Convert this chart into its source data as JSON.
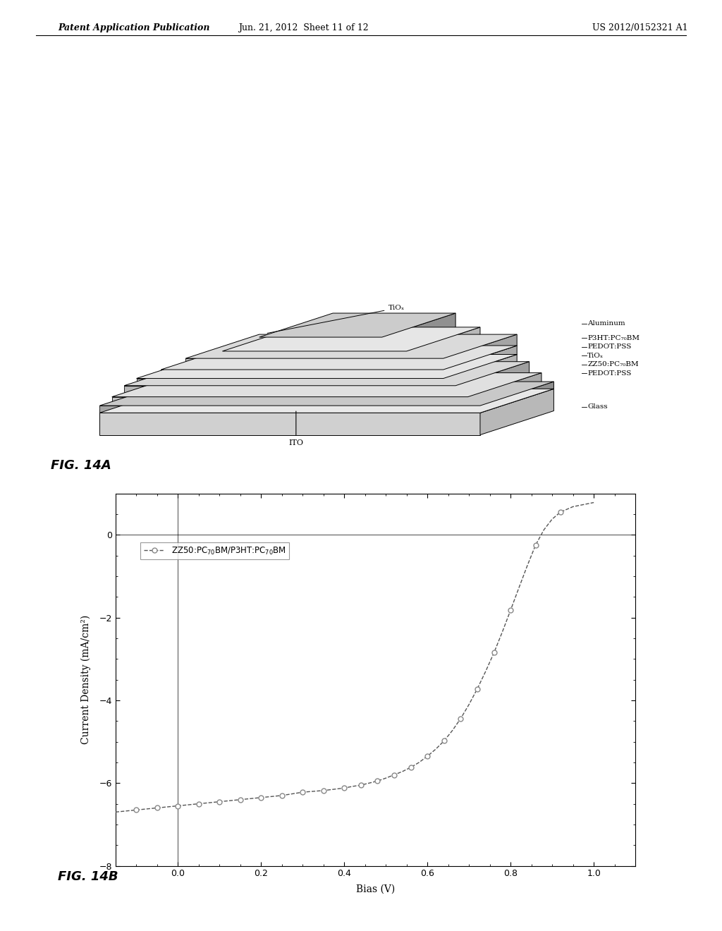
{
  "header_left": "Patent Application Publication",
  "header_center": "Jun. 21, 2012  Sheet 11 of 12",
  "header_right": "US 2012/0152321 A1",
  "fig14a_label": "FIG. 14A",
  "fig14b_label": "FIG. 14B",
  "layer_labels": [
    "TiOₓ",
    "Aluminum",
    "P3HT:PC₇₀BM",
    "PEDOT:PSS",
    "TiOₓ",
    "ZZ50:PC₇₀BM",
    "PEDOT:PSS",
    "Glass",
    "ITO"
  ],
  "xlabel": "Bias (V)",
  "ylabel": "Current Density (mA/cm²)",
  "legend_label": "ZZ50:PC₇₀BM/P3HT:PC₇₀BM",
  "xlim": [
    -0.15,
    1.1
  ],
  "ylim": [
    -8,
    1.0
  ],
  "xticks": [
    0.0,
    0.2,
    0.4,
    0.6,
    0.8,
    1.0
  ],
  "yticks": [
    0,
    -2,
    -4,
    -6,
    -8
  ],
  "curve_x": [
    -0.15,
    -0.1,
    -0.05,
    0.0,
    0.05,
    0.1,
    0.15,
    0.2,
    0.25,
    0.3,
    0.35,
    0.4,
    0.42,
    0.44,
    0.46,
    0.48,
    0.5,
    0.52,
    0.54,
    0.56,
    0.58,
    0.6,
    0.62,
    0.64,
    0.66,
    0.68,
    0.7,
    0.72,
    0.74,
    0.76,
    0.78,
    0.8,
    0.82,
    0.84,
    0.86,
    0.88,
    0.9,
    0.92,
    0.95,
    1.0
  ],
  "curve_y": [
    -6.7,
    -6.65,
    -6.6,
    -6.55,
    -6.5,
    -6.45,
    -6.4,
    -6.35,
    -6.3,
    -6.22,
    -6.18,
    -6.12,
    -6.08,
    -6.05,
    -6.0,
    -5.95,
    -5.88,
    -5.8,
    -5.72,
    -5.62,
    -5.5,
    -5.35,
    -5.18,
    -4.98,
    -4.73,
    -4.44,
    -4.1,
    -3.72,
    -3.3,
    -2.85,
    -2.35,
    -1.82,
    -1.28,
    -0.75,
    -0.25,
    0.12,
    0.38,
    0.55,
    0.68,
    0.78
  ],
  "marker_x": [
    -0.1,
    -0.05,
    0.0,
    0.05,
    0.1,
    0.15,
    0.2,
    0.25,
    0.3,
    0.35,
    0.4,
    0.44,
    0.48,
    0.52,
    0.56,
    0.6,
    0.64,
    0.68,
    0.72,
    0.76,
    0.8,
    0.86,
    0.92
  ],
  "marker_y": [
    -6.65,
    -6.6,
    -6.55,
    -6.5,
    -6.45,
    -6.4,
    -6.35,
    -6.3,
    -6.22,
    -6.18,
    -6.12,
    -6.05,
    -5.95,
    -5.8,
    -5.62,
    -5.35,
    -4.98,
    -4.44,
    -3.72,
    -2.85,
    -1.82,
    -0.25,
    0.55
  ],
  "bg_color": "#ffffff",
  "line_color": "#555555",
  "marker_color": "#888888",
  "text_color": "#000000"
}
